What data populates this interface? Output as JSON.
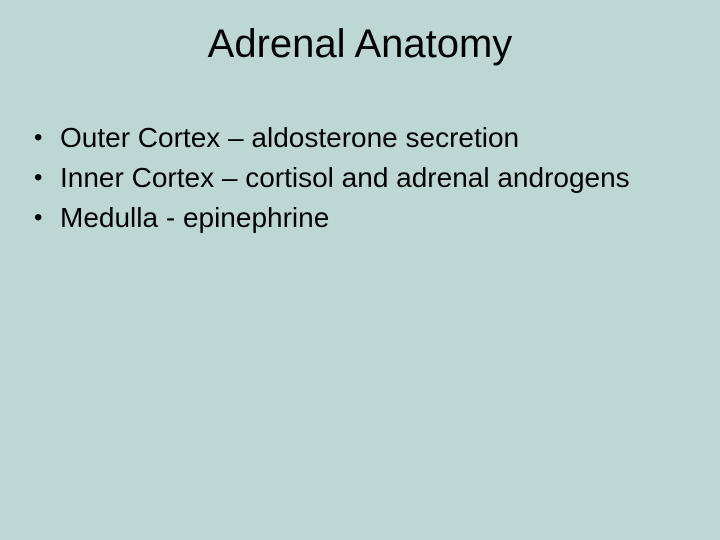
{
  "slide": {
    "background_color": "#bdd7d5",
    "text_color": "#000000",
    "font_family": "Arial",
    "title": {
      "text": "Adrenal Anatomy",
      "fontsize": 40,
      "align": "center"
    },
    "bullets": {
      "fontsize": 28,
      "line_height": 40,
      "marker": "•",
      "items": [
        "Outer Cortex – aldosterone secretion",
        "Inner Cortex – cortisol and adrenal androgens",
        "Medulla - epinephrine"
      ]
    }
  }
}
